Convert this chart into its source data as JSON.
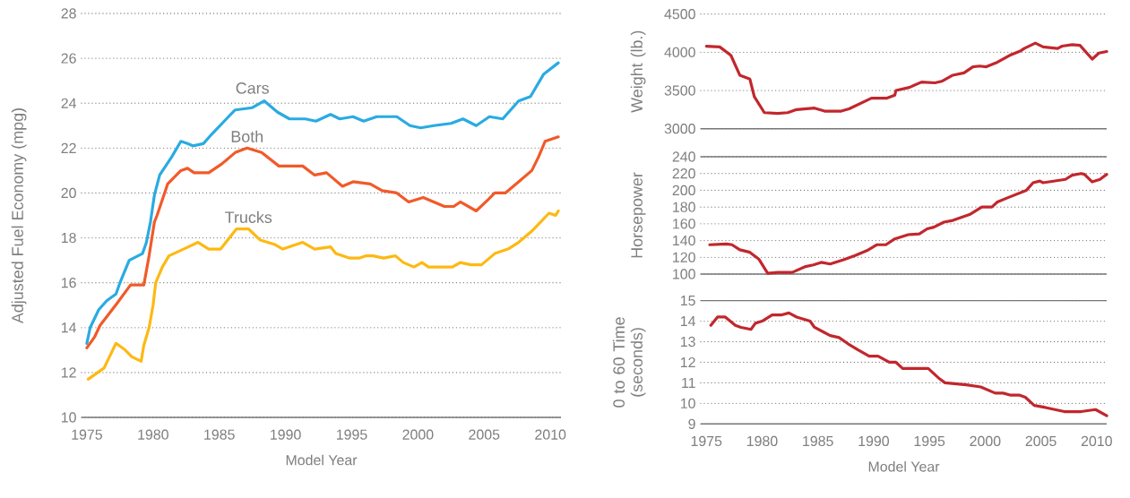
{
  "chart_data": [
    {
      "type": "line",
      "xlabel": "Model Year",
      "ylabel": "Adjusted Fuel Economy (mpg)",
      "xlim": [
        1974.6,
        2010.8
      ],
      "ylim": [
        10,
        28
      ],
      "xticks": [
        1975,
        1980,
        1985,
        1990,
        1995,
        2000,
        2005,
        2010
      ],
      "yticks": [
        10,
        12,
        14,
        16,
        18,
        20,
        22,
        24,
        26,
        28
      ],
      "grid": "y",
      "series": [
        {
          "name": "Cars",
          "color": "#29abe2",
          "x": [
            1975.0,
            1975.25,
            1975.9,
            1976.5,
            1977.2,
            1977.5,
            1978.2,
            1979.2,
            1979.5,
            1979.8,
            1980.1,
            1980.5,
            1981.4,
            1982.1,
            1982.6,
            1983.0,
            1983.8,
            1984.4,
            1985.7,
            1986.2,
            1987.5,
            1988.4,
            1989.4,
            1990.3,
            1991.5,
            1992.3,
            1993.4,
            1994.1,
            1995.1,
            1995.9,
            1996.9,
            1998.4,
            1999.4,
            2000.2,
            2001.2,
            2002.5,
            2003.4,
            2004.4,
            2005.4,
            2006.4,
            2007.6,
            2008.5,
            2009.5,
            2010.6
          ],
          "values": [
            13.3,
            14.0,
            14.8,
            15.2,
            15.5,
            16.0,
            17.0,
            17.3,
            17.8,
            18.7,
            19.9,
            20.8,
            21.6,
            22.3,
            22.2,
            22.1,
            22.2,
            22.6,
            23.4,
            23.7,
            23.8,
            24.1,
            23.6,
            23.3,
            23.3,
            23.2,
            23.5,
            23.3,
            23.4,
            23.2,
            23.4,
            23.4,
            23.0,
            22.9,
            23.0,
            23.1,
            23.3,
            23.0,
            23.4,
            23.3,
            24.1,
            24.3,
            25.3,
            25.8
          ]
        },
        {
          "name": "Both",
          "color": "#f15a29",
          "x": [
            1975.0,
            1975.6,
            1976.0,
            1977.3,
            1978.3,
            1979.3,
            1979.7,
            1980.1,
            1980.3,
            1981.1,
            1982.1,
            1982.6,
            1983.1,
            1984.2,
            1985.2,
            1986.2,
            1987.1,
            1988.2,
            1989.5,
            1991.3,
            1992.2,
            1993.1,
            1994.3,
            1995.1,
            1996.4,
            1997.3,
            1998.4,
            1999.3,
            2000.4,
            2002.0,
            2002.7,
            2003.2,
            2004.4,
            2005.3,
            2005.8,
            2006.6,
            2007.6,
            2008.6,
            2009.1,
            2009.6,
            2010.6
          ],
          "values": [
            13.1,
            13.6,
            14.1,
            15.1,
            15.9,
            15.9,
            17.2,
            18.7,
            19.0,
            20.4,
            21.0,
            21.1,
            20.9,
            20.9,
            21.3,
            21.8,
            22.0,
            21.8,
            21.2,
            21.2,
            20.8,
            20.9,
            20.3,
            20.5,
            20.4,
            20.1,
            20.0,
            19.6,
            19.8,
            19.4,
            19.4,
            19.6,
            19.2,
            19.7,
            20.0,
            20.0,
            20.5,
            21.0,
            21.6,
            22.3,
            22.5
          ]
        },
        {
          "name": "Trucks",
          "color": "#fdb913",
          "x": [
            1975.1,
            1976.3,
            1977.2,
            1977.9,
            1978.4,
            1979.1,
            1979.3,
            1979.7,
            1980.0,
            1980.2,
            1980.7,
            1981.2,
            1982.3,
            1983.4,
            1984.2,
            1985.1,
            1986.3,
            1987.2,
            1988.1,
            1989.2,
            1989.8,
            1991.3,
            1992.2,
            1993.4,
            1993.8,
            1994.8,
            1995.6,
            1996.1,
            1996.6,
            1997.4,
            1998.3,
            1998.9,
            1999.7,
            2000.3,
            2000.8,
            2002.0,
            2002.6,
            2003.2,
            2004.0,
            2004.8,
            2005.8,
            2006.8,
            2007.6,
            2008.6,
            2009.9,
            2010.4,
            2010.6
          ],
          "values": [
            11.7,
            12.2,
            13.3,
            13.0,
            12.7,
            12.5,
            13.2,
            14.0,
            15.0,
            16.0,
            16.7,
            17.2,
            17.5,
            17.8,
            17.5,
            17.5,
            18.4,
            18.4,
            17.9,
            17.7,
            17.5,
            17.8,
            17.5,
            17.6,
            17.3,
            17.1,
            17.1,
            17.2,
            17.2,
            17.1,
            17.2,
            16.9,
            16.7,
            16.9,
            16.7,
            16.7,
            16.7,
            16.9,
            16.8,
            16.8,
            17.3,
            17.5,
            17.8,
            18.3,
            19.1,
            19.0,
            19.2
          ]
        }
      ]
    },
    {
      "type": "line",
      "ylabel": "Weight (lb.)",
      "xlim": [
        1974.5,
        2010.9
      ],
      "ylim": [
        3000,
        4500
      ],
      "xticks": [
        1975,
        1980,
        1985,
        1990,
        1995,
        2000,
        2005,
        2010
      ],
      "yticks": [
        3000,
        3500,
        4000,
        4500
      ],
      "grid": "y",
      "tick_labels": "y",
      "series": [
        {
          "color": "#c1272d",
          "x": [
            1975.0,
            1976.2,
            1977.2,
            1978.0,
            1978.9,
            1979.3,
            1980.2,
            1981.4,
            1982.3,
            1983.1,
            1984.7,
            1985.6,
            1987.1,
            1987.8,
            1988.8,
            1989.8,
            1991.2,
            1991.9,
            1992.0,
            1993.2,
            1994.3,
            1995.5,
            1996.1,
            1997.1,
            1998.1,
            1998.9,
            1999.5,
            2000.1,
            2001.1,
            2002.2,
            2003.2,
            2003.5,
            2004.5,
            2005.2,
            2006.5,
            2006.9,
            2007.8,
            2008.5,
            2009.6,
            2010.2,
            2010.9
          ],
          "values": [
            4080,
            4070,
            3960,
            3700,
            3650,
            3420,
            3210,
            3200,
            3210,
            3250,
            3270,
            3230,
            3230,
            3260,
            3330,
            3400,
            3400,
            3440,
            3500,
            3540,
            3610,
            3600,
            3620,
            3700,
            3730,
            3810,
            3820,
            3810,
            3870,
            3960,
            4020,
            4050,
            4120,
            4070,
            4050,
            4080,
            4100,
            4090,
            3910,
            3990,
            4010
          ]
        }
      ]
    },
    {
      "type": "line",
      "ylabel": "Horsepower",
      "xlim": [
        1974.5,
        2010.9
      ],
      "ylim": [
        100,
        240
      ],
      "xticks": [
        1975,
        1980,
        1985,
        1990,
        1995,
        2000,
        2005,
        2010
      ],
      "yticks": [
        100,
        120,
        140,
        160,
        180,
        200,
        220,
        240
      ],
      "grid": "y",
      "tick_labels": "y",
      "series": [
        {
          "color": "#c1272d",
          "x": [
            1975.3,
            1976.8,
            1977.3,
            1978.0,
            1978.9,
            1979.7,
            1980.5,
            1981.4,
            1982.7,
            1983.9,
            1984.6,
            1985.3,
            1986.1,
            1987.3,
            1988.3,
            1989.4,
            1990.3,
            1991.1,
            1991.9,
            1993.1,
            1994.1,
            1994.8,
            1995.4,
            1996.3,
            1997.1,
            1998.6,
            1999.7,
            2000.6,
            2001.1,
            2002.0,
            2003.7,
            2004.3,
            2004.9,
            2005.2,
            2007.2,
            2007.8,
            2008.6,
            2008.9,
            2009.6,
            2010.3,
            2010.9
          ],
          "values": [
            135,
            136,
            135,
            129,
            126,
            118,
            101,
            102,
            102,
            109,
            111,
            114,
            112,
            117,
            122,
            128,
            135,
            135,
            142,
            147,
            148,
            154,
            156,
            162,
            164,
            171,
            180,
            180,
            186,
            191,
            200,
            209,
            211,
            209,
            213,
            218,
            220,
            219,
            210,
            213,
            219
          ]
        }
      ]
    },
    {
      "type": "line",
      "xlabel": "Model Year",
      "ylabel": "0 to 60 Time (seconds)",
      "xlim": [
        1974.5,
        2010.9
      ],
      "ylim": [
        9,
        15
      ],
      "xticks": [
        1975,
        1980,
        1985,
        1990,
        1995,
        2000,
        2005,
        2010
      ],
      "yticks": [
        9,
        10,
        11,
        12,
        13,
        14,
        15
      ],
      "grid": "y",
      "series": [
        {
          "color": "#c1272d",
          "x": [
            1975.4,
            1976.0,
            1976.7,
            1977.6,
            1978.1,
            1979.0,
            1979.4,
            1980.0,
            1980.9,
            1981.7,
            1982.4,
            1983.1,
            1984.3,
            1984.7,
            1985.4,
            1986.1,
            1986.9,
            1987.7,
            1988.6,
            1989.6,
            1990.4,
            1991.4,
            1992.0,
            1992.6,
            1993.7,
            1994.9,
            1995.9,
            1996.4,
            1998.3,
            1999.6,
            2000.9,
            2001.6,
            2002.3,
            2003.1,
            2003.6,
            2004.4,
            2005.4,
            2007.1,
            2008.6,
            2009.9,
            2010.9
          ],
          "values": [
            13.8,
            14.2,
            14.2,
            13.8,
            13.7,
            13.6,
            13.9,
            14.0,
            14.3,
            14.3,
            14.4,
            14.2,
            14.0,
            13.7,
            13.5,
            13.3,
            13.2,
            12.9,
            12.6,
            12.3,
            12.3,
            12.0,
            12.0,
            11.7,
            11.7,
            11.7,
            11.2,
            11.0,
            10.9,
            10.8,
            10.5,
            10.5,
            10.4,
            10.4,
            10.3,
            9.9,
            9.8,
            9.6,
            9.6,
            9.7,
            9.4
          ]
        }
      ]
    }
  ]
}
